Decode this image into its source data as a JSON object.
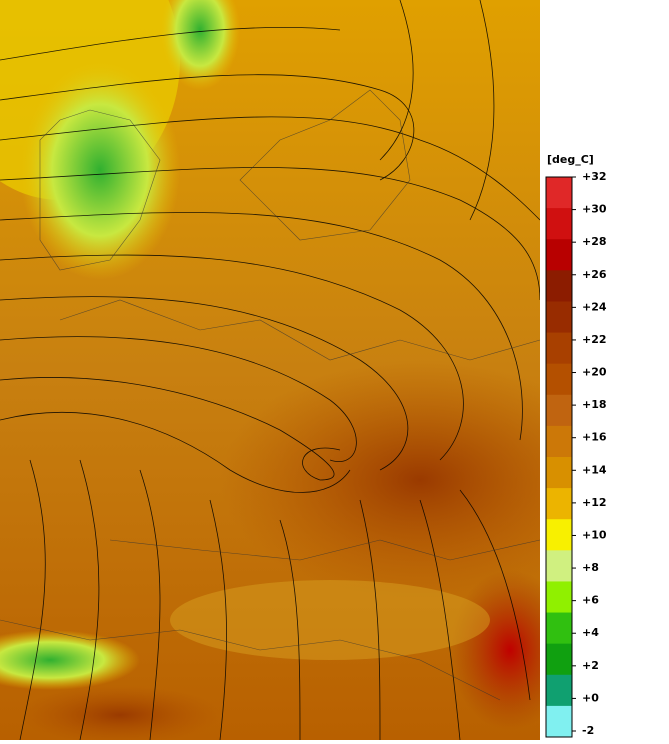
{
  "legend": {
    "unit": "[deg_C]",
    "ticks": [
      {
        "value": 32,
        "label": "+32"
      },
      {
        "value": 30,
        "label": "+30"
      },
      {
        "value": 28,
        "label": "+28"
      },
      {
        "value": 26,
        "label": "+26"
      },
      {
        "value": 24,
        "label": "+24"
      },
      {
        "value": 22,
        "label": "+22"
      },
      {
        "value": 20,
        "label": "+20"
      },
      {
        "value": 18,
        "label": "+18"
      },
      {
        "value": 16,
        "label": "+16"
      },
      {
        "value": 14,
        "label": "+14"
      },
      {
        "value": 12,
        "label": "+12"
      },
      {
        "value": 10,
        "label": "+10"
      },
      {
        "value": 8,
        "label": "+8"
      },
      {
        "value": 6,
        "label": "+6"
      },
      {
        "value": 4,
        "label": "+4"
      },
      {
        "value": 2,
        "label": "+2"
      },
      {
        "value": 0,
        "label": "+0"
      },
      -2
    ],
    "bin_colors": [
      "#e02828",
      "#d01010",
      "#b80000",
      "#8c1c00",
      "#982c00",
      "#a84000",
      "#b45000",
      "#c06410",
      "#cc7808",
      "#d89000",
      "#ecb400",
      "#f8f000",
      "#d0f080",
      "#90f000",
      "#30c010",
      "#10a010",
      "#10a070",
      "#80f0f0"
    ]
  }
}
